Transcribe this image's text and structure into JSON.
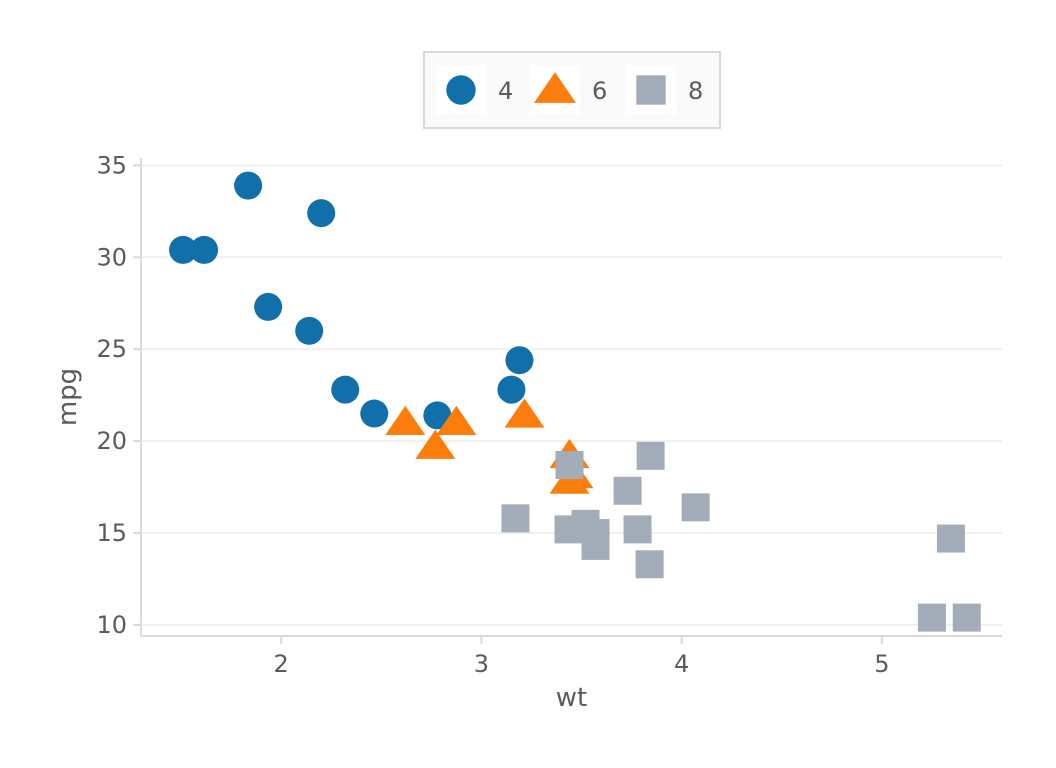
{
  "chart_data": {
    "type": "scatter",
    "xlabel": "wt",
    "ylabel": "mpg",
    "xlim": [
      1.3,
      5.6
    ],
    "ylim": [
      9.4,
      35.4
    ],
    "x_ticks": [
      2,
      3,
      4,
      5
    ],
    "y_ticks": [
      10,
      15,
      20,
      25,
      30,
      35
    ],
    "grid": "horizontal",
    "legend_position": "top",
    "series": [
      {
        "name": "4",
        "marker": "circle",
        "color": "#1170aa",
        "points": [
          [
            1.51,
            30.4
          ],
          [
            1.615,
            30.4
          ],
          [
            1.835,
            33.9
          ],
          [
            1.935,
            27.3
          ],
          [
            2.14,
            26.0
          ],
          [
            2.2,
            32.4
          ],
          [
            2.32,
            22.8
          ],
          [
            2.465,
            21.5
          ],
          [
            2.78,
            21.4
          ],
          [
            3.15,
            22.8
          ],
          [
            3.19,
            24.4
          ]
        ]
      },
      {
        "name": "6",
        "marker": "triangle",
        "color": "#fc7d0b",
        "points": [
          [
            2.62,
            21.0
          ],
          [
            2.77,
            19.7
          ],
          [
            2.875,
            21.0
          ],
          [
            3.215,
            21.4
          ],
          [
            3.44,
            19.2
          ],
          [
            3.44,
            17.8
          ],
          [
            3.46,
            18.1
          ]
        ]
      },
      {
        "name": "8",
        "marker": "square",
        "color": "#a3acb9",
        "points": [
          [
            3.17,
            15.8
          ],
          [
            3.435,
            15.2
          ],
          [
            3.44,
            18.7
          ],
          [
            3.52,
            15.5
          ],
          [
            3.57,
            14.3
          ],
          [
            3.57,
            15.0
          ],
          [
            3.73,
            17.3
          ],
          [
            3.78,
            15.2
          ],
          [
            3.84,
            13.3
          ],
          [
            3.845,
            19.2
          ],
          [
            4.07,
            16.4
          ],
          [
            5.25,
            10.4
          ],
          [
            5.345,
            14.7
          ],
          [
            5.424,
            10.4
          ]
        ]
      }
    ]
  }
}
